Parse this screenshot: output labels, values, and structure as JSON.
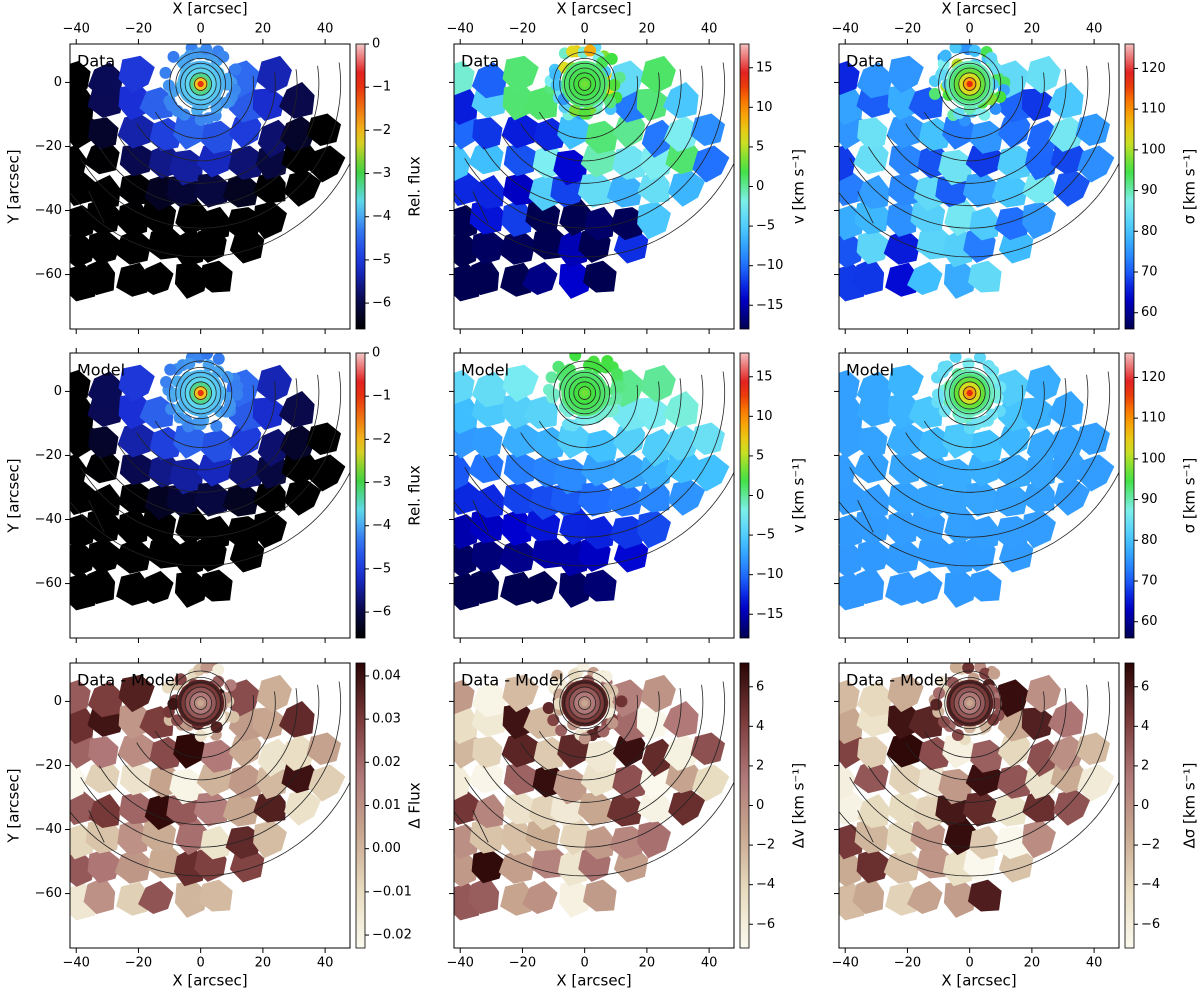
{
  "chart_data": {
    "type": "heatmap",
    "description_rows": [
      "Data",
      "Model",
      "Data - Model"
    ],
    "columns": [
      "flux",
      "velocity",
      "dispersion"
    ],
    "axes": {
      "xlabel": "X [arcsec]",
      "ylabel": "Y [arcsec]",
      "xlim": [
        -42,
        48
      ],
      "ylim": [
        -77,
        12
      ],
      "xticks": [
        -40,
        -20,
        0,
        20,
        40
      ],
      "yticks": [
        0,
        -20,
        -40,
        -60
      ],
      "xtick_labels": [
        "−40",
        "−20",
        "0",
        "20",
        "40"
      ],
      "ytick_labels": [
        "0",
        "−20",
        "−40",
        "−60"
      ]
    },
    "center": {
      "x": 0,
      "y": -0.5
    },
    "isophote_radii": [
      2,
      3.5,
      5,
      6.5,
      8,
      10,
      17,
      24,
      31,
      38,
      45,
      54
    ],
    "tile_size": 9,
    "colorbars": {
      "flux": {
        "label": "Rel. flux",
        "min": -6.6,
        "max": 0,
        "ticks": [
          0,
          -1,
          -2,
          -3,
          -4,
          -5,
          -6
        ],
        "tick_labels": [
          "0",
          "−1",
          "−2",
          "−3",
          "−4",
          "−5",
          "−6"
        ]
      },
      "velocity": {
        "label": "v [km s⁻¹]",
        "min": -18,
        "max": 18,
        "ticks": [
          15,
          10,
          5,
          0,
          -5,
          -10,
          -15
        ],
        "tick_labels": [
          "15",
          "10",
          "5",
          "0",
          "−5",
          "−10",
          "−15"
        ]
      },
      "dispersion": {
        "label": "σ [km s⁻¹]",
        "min": 56,
        "max": 126,
        "ticks": [
          120,
          110,
          100,
          90,
          80,
          70,
          60
        ],
        "tick_labels": [
          "120",
          "110",
          "100",
          "90",
          "80",
          "70",
          "60"
        ]
      },
      "dflux": {
        "label": "Δ Flux",
        "min": -0.023,
        "max": 0.043,
        "ticks": [
          0.04,
          0.03,
          0.02,
          0.01,
          0.0,
          -0.01,
          -0.02
        ],
        "tick_labels": [
          "0.04",
          "0.03",
          "0.02",
          "0.01",
          "0.00",
          "−0.01",
          "−0.02"
        ]
      },
      "dv": {
        "label": "Δv [km s⁻¹]",
        "min": -7.2,
        "max": 7.2,
        "ticks": [
          6,
          4,
          2,
          0,
          -2,
          -4,
          -6
        ],
        "tick_labels": [
          "6",
          "4",
          "2",
          "0",
          "−2",
          "−4",
          "−6"
        ]
      },
      "dsigma": {
        "label": "Δσ [km s⁻¹]",
        "min": -7.2,
        "max": 7.2,
        "ticks": [
          6,
          4,
          2,
          0,
          -2,
          -4,
          -6
        ],
        "tick_labels": [
          "6",
          "4",
          "2",
          "0",
          "−2",
          "−4",
          "−6"
        ]
      }
    },
    "panels": [
      {
        "row": 0,
        "col": 0,
        "label": "Data",
        "map": "flux",
        "cbar": "flux",
        "cmap": "flux"
      },
      {
        "row": 0,
        "col": 1,
        "label": "Data",
        "map": "velocity",
        "cbar": "velocity",
        "cmap": "jet",
        "noisy": true
      },
      {
        "row": 0,
        "col": 2,
        "label": "Data",
        "map": "dispersion",
        "cbar": "dispersion",
        "cmap": "jet",
        "noisy": true
      },
      {
        "row": 1,
        "col": 0,
        "label": "Model",
        "map": "flux",
        "cbar": "flux",
        "cmap": "flux"
      },
      {
        "row": 1,
        "col": 1,
        "label": "Model",
        "map": "velocity",
        "cbar": "velocity",
        "cmap": "jet"
      },
      {
        "row": 1,
        "col": 2,
        "label": "Model",
        "map": "dispersion",
        "cbar": "dispersion",
        "cmap": "jet"
      },
      {
        "row": 2,
        "col": 0,
        "label": "Data - Model",
        "map": "resid",
        "cbar": "dflux",
        "cmap": "pink"
      },
      {
        "row": 2,
        "col": 1,
        "label": "Data - Model",
        "map": "resid",
        "cbar": "dv",
        "cmap": "pink"
      },
      {
        "row": 2,
        "col": 2,
        "label": "Data - Model",
        "map": "resid",
        "cbar": "dsigma",
        "cmap": "pink"
      }
    ]
  },
  "colors": {
    "flux_cmap": [
      "#000000",
      "#0a0a55",
      "#1a2fd6",
      "#2f6cf0",
      "#5fd8f0",
      "#3fd23a",
      "#f0d020",
      "#f07010",
      "#e01010",
      "#f4c8c8"
    ],
    "jet_cmap": [
      "#000050",
      "#0000d0",
      "#2070ff",
      "#40c0ff",
      "#80f0f0",
      "#40e040",
      "#e0e020",
      "#ff9000",
      "#e01010",
      "#f4c0c0"
    ],
    "pink_cmap": [
      "#fbf9ee",
      "#e8dcc0",
      "#c8a890",
      "#b07878",
      "#7a3a3a",
      "#2a0505"
    ],
    "contour": "#222222"
  }
}
